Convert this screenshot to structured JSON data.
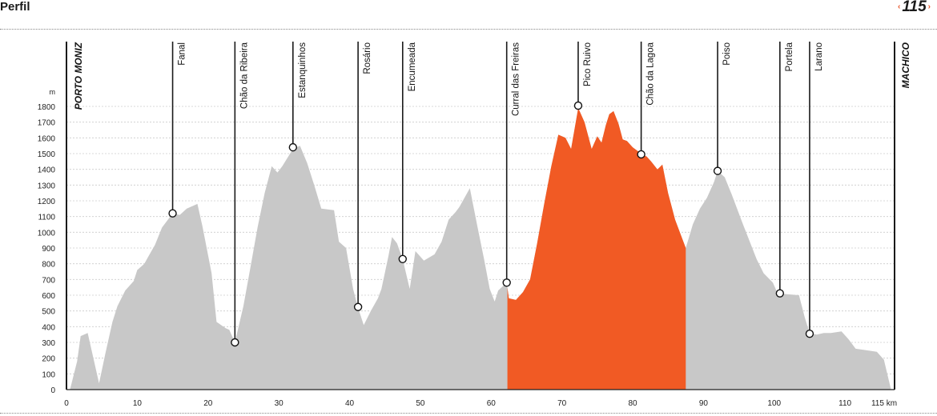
{
  "header": {
    "title": "Perfil",
    "page_number": "115",
    "arrow_left": "‹",
    "arrow_right": "›"
  },
  "colors": {
    "profile_fill": "#c8c8c8",
    "highlight_fill": "#f15a24",
    "marker_line": "#1a1a1a",
    "grid": "#cccccc"
  },
  "chart_data": {
    "type": "area",
    "title": "",
    "xlabel": "",
    "ylabel": "",
    "y_unit": "m",
    "x_unit": "km",
    "xlim": [
      0,
      117
    ],
    "ylim": [
      0,
      1800
    ],
    "x_ticks": [
      0,
      10,
      20,
      30,
      40,
      50,
      60,
      70,
      80,
      90,
      100,
      110
    ],
    "x_end_tick": "115 km",
    "y_ticks": [
      0,
      100,
      200,
      300,
      400,
      500,
      600,
      700,
      800,
      900,
      1000,
      1100,
      1200,
      1300,
      1400,
      1500,
      1600,
      1700,
      1800
    ],
    "grid": true,
    "highlight_range": [
      62.3,
      87.5
    ],
    "profile": [
      [
        0.5,
        0
      ],
      [
        1.5,
        180
      ],
      [
        2,
        340
      ],
      [
        3,
        360
      ],
      [
        4.6,
        40
      ],
      [
        5.5,
        230
      ],
      [
        6.5,
        430
      ],
      [
        7.2,
        530
      ],
      [
        8.3,
        630
      ],
      [
        9.5,
        690
      ],
      [
        10,
        760
      ],
      [
        11,
        800
      ],
      [
        11.5,
        840
      ],
      [
        12.5,
        920
      ],
      [
        13.5,
        1030
      ],
      [
        15,
        1120
      ],
      [
        16,
        1110
      ],
      [
        17,
        1150
      ],
      [
        18.5,
        1180
      ],
      [
        19.2,
        1040
      ],
      [
        20.5,
        740
      ],
      [
        21.2,
        430
      ],
      [
        22.5,
        390
      ],
      [
        23,
        380
      ],
      [
        23.8,
        300
      ],
      [
        25,
        530
      ],
      [
        26,
        780
      ],
      [
        27,
        1030
      ],
      [
        28,
        1250
      ],
      [
        29,
        1420
      ],
      [
        29.8,
        1380
      ],
      [
        30.5,
        1420
      ],
      [
        32,
        1530
      ],
      [
        33,
        1550
      ],
      [
        34,
        1440
      ],
      [
        35,
        1300
      ],
      [
        36,
        1150
      ],
      [
        37.8,
        1140
      ],
      [
        38.5,
        940
      ],
      [
        39.5,
        900
      ],
      [
        40.5,
        640
      ],
      [
        41.2,
        520
      ],
      [
        42,
        410
      ],
      [
        43,
        500
      ],
      [
        44,
        580
      ],
      [
        44.5,
        640
      ],
      [
        45.5,
        850
      ],
      [
        46,
        970
      ],
      [
        46.7,
        930
      ],
      [
        47.5,
        830
      ],
      [
        48.5,
        640
      ],
      [
        49.3,
        880
      ],
      [
        50.5,
        820
      ],
      [
        52,
        860
      ],
      [
        53,
        940
      ],
      [
        54,
        1080
      ],
      [
        55,
        1130
      ],
      [
        55.5,
        1160
      ],
      [
        57,
        1280
      ],
      [
        58,
        1050
      ],
      [
        59,
        830
      ],
      [
        59.8,
        640
      ],
      [
        60.5,
        560
      ],
      [
        61,
        630
      ],
      [
        62.2,
        680
      ],
      [
        62.5,
        580
      ],
      [
        63.5,
        570
      ],
      [
        64.5,
        620
      ],
      [
        65.5,
        700
      ],
      [
        66.5,
        930
      ],
      [
        67.5,
        1180
      ],
      [
        68.5,
        1420
      ],
      [
        69.5,
        1620
      ],
      [
        70.5,
        1600
      ],
      [
        71.3,
        1530
      ],
      [
        72.3,
        1790
      ],
      [
        73.2,
        1700
      ],
      [
        74.2,
        1530
      ],
      [
        75,
        1610
      ],
      [
        75.6,
        1570
      ],
      [
        76.2,
        1680
      ],
      [
        76.7,
        1750
      ],
      [
        77.3,
        1770
      ],
      [
        78,
        1690
      ],
      [
        78.6,
        1590
      ],
      [
        79.2,
        1580
      ],
      [
        80,
        1540
      ],
      [
        81.2,
        1500
      ],
      [
        82,
        1480
      ],
      [
        82.6,
        1450
      ],
      [
        83.5,
        1400
      ],
      [
        84.2,
        1430
      ],
      [
        85,
        1250
      ],
      [
        86,
        1080
      ],
      [
        87.5,
        900
      ],
      [
        88.5,
        1050
      ],
      [
        89.5,
        1150
      ],
      [
        90.5,
        1220
      ],
      [
        91.5,
        1320
      ],
      [
        92,
        1390
      ],
      [
        93,
        1350
      ],
      [
        94,
        1240
      ],
      [
        95.5,
        1060
      ],
      [
        97.5,
        830
      ],
      [
        98.5,
        740
      ],
      [
        99.8,
        680
      ],
      [
        100.3,
        630
      ],
      [
        100.8,
        610
      ],
      [
        103.5,
        600
      ],
      [
        104.3,
        460
      ],
      [
        105,
        360
      ],
      [
        106,
        350
      ],
      [
        107,
        360
      ],
      [
        108,
        360
      ],
      [
        109.5,
        370
      ],
      [
        110.5,
        320
      ],
      [
        111.5,
        260
      ],
      [
        113,
        250
      ],
      [
        114.5,
        240
      ],
      [
        115.5,
        190
      ],
      [
        116.5,
        0
      ]
    ],
    "endpoints": [
      {
        "name": "PORTO MONIZ",
        "km": 0
      },
      {
        "name": "MACHICO",
        "km": 117
      }
    ],
    "waypoints": [
      {
        "name": "Fanal",
        "km": 15,
        "altitude": 1120
      },
      {
        "name": "Chão da Ribeira",
        "km": 23.8,
        "altitude": 300
      },
      {
        "name": "Estanquinhos",
        "km": 32,
        "altitude": 1540
      },
      {
        "name": "Rosário",
        "km": 41.2,
        "altitude": 525
      },
      {
        "name": "Encumeada",
        "km": 47.5,
        "altitude": 830
      },
      {
        "name": "Curral das Freiras",
        "km": 62.2,
        "altitude": 680
      },
      {
        "name": "Pico Ruivo",
        "km": 72.3,
        "altitude": 1805
      },
      {
        "name": "Chão da Lagoa",
        "km": 81.2,
        "altitude": 1495
      },
      {
        "name": "Poiso",
        "km": 92,
        "altitude": 1390
      },
      {
        "name": "Portela",
        "km": 100.8,
        "altitude": 612
      },
      {
        "name": "Larano",
        "km": 105,
        "altitude": 355
      }
    ]
  }
}
